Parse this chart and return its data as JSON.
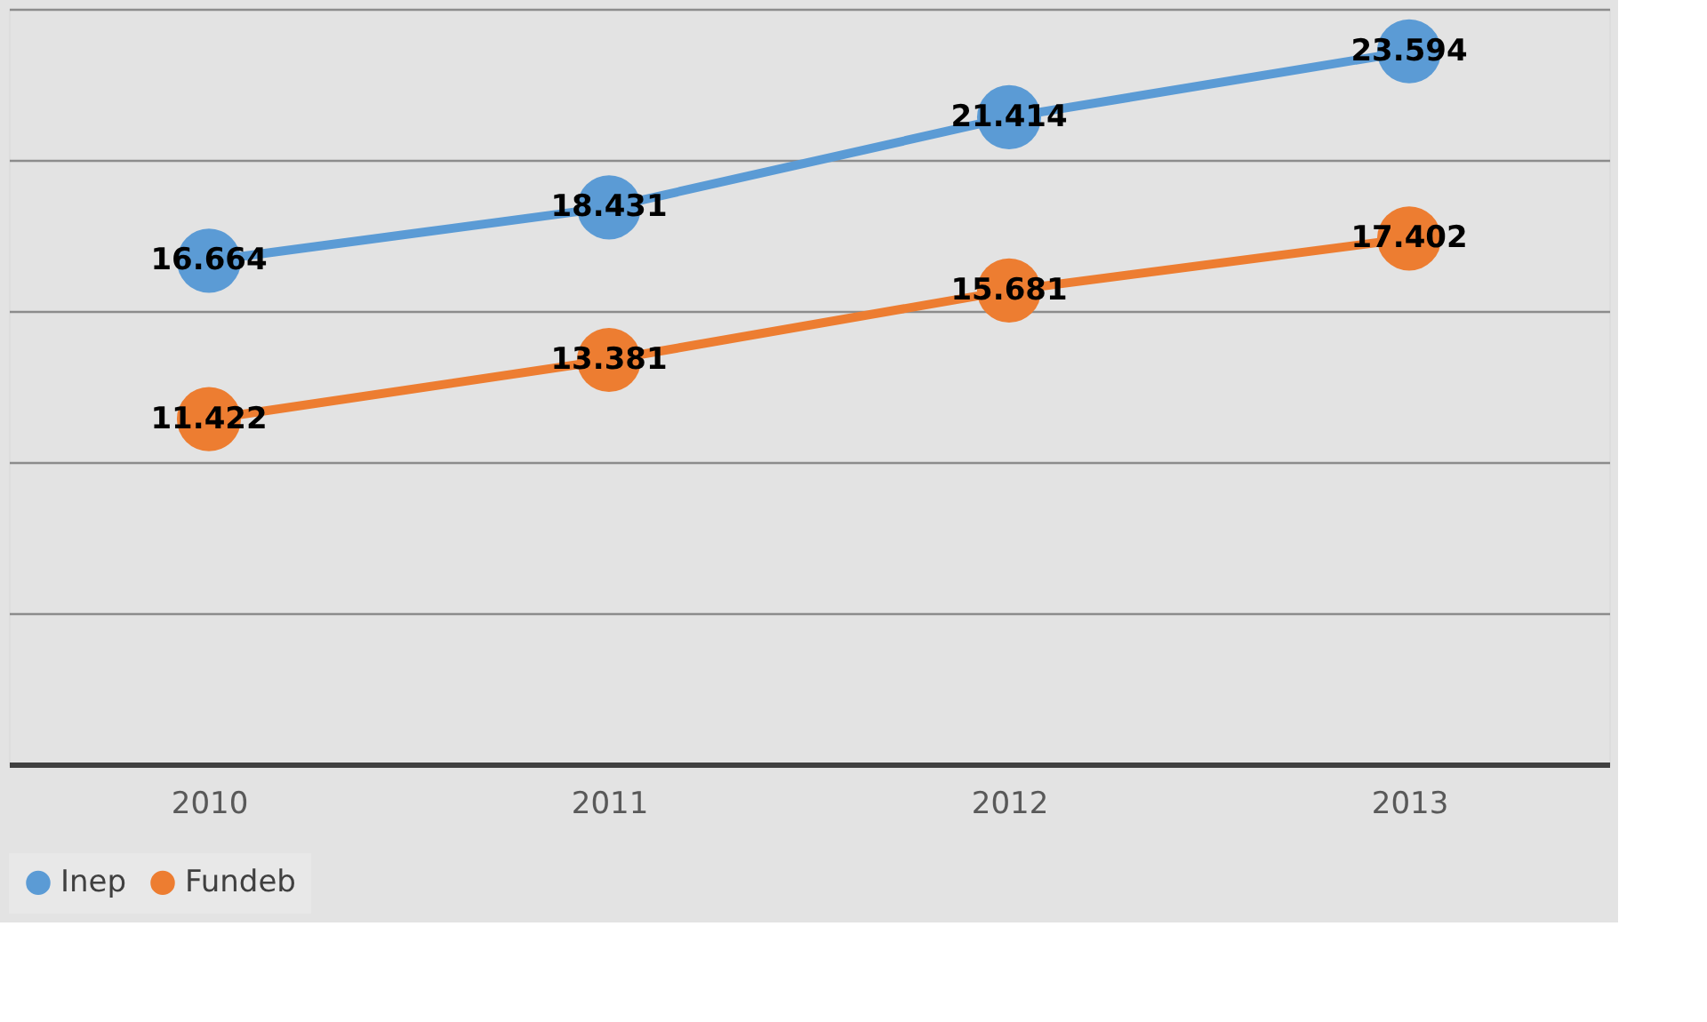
{
  "chart_data": {
    "type": "line",
    "categories": [
      "2010",
      "2011",
      "2012",
      "2013"
    ],
    "series": [
      {
        "name": "Inep",
        "color": "#5b9bd5",
        "values": [
          16.664,
          18.431,
          21.414,
          23.594
        ]
      },
      {
        "name": "Fundeb",
        "color": "#ed7d31",
        "values": [
          11.422,
          13.381,
          15.681,
          17.402
        ]
      }
    ],
    "ylim": [
      0,
      25
    ],
    "yticks": [
      {
        "value": 0,
        "label": null
      },
      {
        "value": 5,
        "label": null
      },
      {
        "value": 10,
        "label": null
      },
      {
        "value": 15,
        "label": null
      },
      {
        "value": 20,
        "label": null
      },
      {
        "value": 25,
        "label": null
      }
    ],
    "tick_labels": "x",
    "grid": "y",
    "legend": "bottom",
    "marker": "circle",
    "line_style": "solid",
    "data_labels": true
  }
}
